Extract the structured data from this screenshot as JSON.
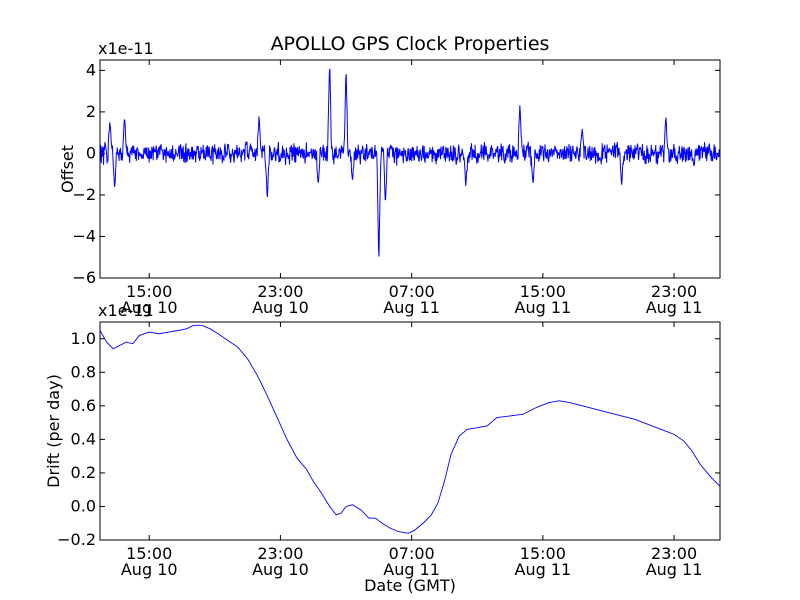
{
  "chart_data": [
    {
      "type": "line",
      "title": "APOLLO GPS Clock Properties",
      "xlabel": "",
      "ylabel": "Offset",
      "scale_label": "x1e-11",
      "x_unit": "hours since Aug 10 12:00 GMT",
      "xlim": [
        0,
        37.8
      ],
      "ylim": [
        -6,
        4.5
      ],
      "yticks": [
        -6,
        -4,
        -2,
        0,
        2,
        4
      ],
      "ytick_labels": [
        "−6",
        "−4",
        "−2",
        "0",
        "2",
        "4"
      ],
      "xticks": [
        3,
        11,
        19,
        27,
        35
      ],
      "xtick_labels": [
        {
          "time": "15:00",
          "date": "Aug 10"
        },
        {
          "time": "23:00",
          "date": "Aug 10"
        },
        {
          "time": "07:00",
          "date": "Aug 11"
        },
        {
          "time": "15:00",
          "date": "Aug 11"
        },
        {
          "time": "23:00",
          "date": "Aug 11"
        }
      ],
      "series": [
        {
          "name": "offset",
          "color": "#0000ff",
          "baseline": 0.0,
          "noise_amplitude": 0.6,
          "features": [
            {
              "x": 0.6,
              "y": 1.6
            },
            {
              "x": 0.9,
              "y": -1.7
            },
            {
              "x": 1.5,
              "y": 1.8
            },
            {
              "x": 9.7,
              "y": 1.9
            },
            {
              "x": 10.2,
              "y": -2.2
            },
            {
              "x": 13.3,
              "y": -1.6
            },
            {
              "x": 14.0,
              "y": 4.5
            },
            {
              "x": 15.0,
              "y": 4.2
            },
            {
              "x": 15.4,
              "y": -1.4
            },
            {
              "x": 17.0,
              "y": -5.4
            },
            {
              "x": 17.4,
              "y": -2.5
            },
            {
              "x": 22.3,
              "y": -1.6
            },
            {
              "x": 25.6,
              "y": 2.4
            },
            {
              "x": 26.4,
              "y": -1.5
            },
            {
              "x": 29.4,
              "y": 1.2
            },
            {
              "x": 31.8,
              "y": -1.6
            },
            {
              "x": 34.5,
              "y": 1.8
            },
            {
              "x": 36.2,
              "y": -0.6
            }
          ]
        }
      ]
    },
    {
      "type": "line",
      "title": "",
      "xlabel": "Date (GMT)",
      "ylabel": "Drift (per day)",
      "scale_label": "x1e-11",
      "x_unit": "hours since Aug 10 12:00 GMT",
      "xlim": [
        0,
        37.8
      ],
      "ylim": [
        -0.2,
        1.1
      ],
      "yticks": [
        -0.2,
        0.0,
        0.2,
        0.4,
        0.6,
        0.8,
        1.0
      ],
      "ytick_labels": [
        "−0.2",
        "0.0",
        "0.2",
        "0.4",
        "0.6",
        "0.8",
        "1.0"
      ],
      "xticks": [
        3,
        11,
        19,
        27,
        35
      ],
      "xtick_labels": [
        {
          "time": "15:00",
          "date": "Aug 10"
        },
        {
          "time": "23:00",
          "date": "Aug 10"
        },
        {
          "time": "07:00",
          "date": "Aug 11"
        },
        {
          "time": "15:00",
          "date": "Aug 11"
        },
        {
          "time": "23:00",
          "date": "Aug 11"
        }
      ],
      "series": [
        {
          "name": "drift",
          "color": "#0000ff",
          "points": [
            [
              0.0,
              1.05
            ],
            [
              0.4,
              0.98
            ],
            [
              0.8,
              0.94
            ],
            [
              1.2,
              0.96
            ],
            [
              1.6,
              0.98
            ],
            [
              2.0,
              0.97
            ],
            [
              2.4,
              1.02
            ],
            [
              3.0,
              1.04
            ],
            [
              3.6,
              1.03
            ],
            [
              4.2,
              1.04
            ],
            [
              4.8,
              1.05
            ],
            [
              5.3,
              1.06
            ],
            [
              5.7,
              1.08
            ],
            [
              6.2,
              1.08
            ],
            [
              6.7,
              1.06
            ],
            [
              7.2,
              1.03
            ],
            [
              7.8,
              0.99
            ],
            [
              8.4,
              0.95
            ],
            [
              9.0,
              0.88
            ],
            [
              9.6,
              0.78
            ],
            [
              10.2,
              0.66
            ],
            [
              10.8,
              0.53
            ],
            [
              11.4,
              0.4
            ],
            [
              12.0,
              0.29
            ],
            [
              12.6,
              0.22
            ],
            [
              13.0,
              0.15
            ],
            [
              13.5,
              0.08
            ],
            [
              14.0,
              0.0
            ],
            [
              14.4,
              -0.05
            ],
            [
              14.7,
              -0.04
            ],
            [
              15.0,
              0.0
            ],
            [
              15.4,
              0.01
            ],
            [
              15.9,
              -0.02
            ],
            [
              16.4,
              -0.07
            ],
            [
              16.8,
              -0.07
            ],
            [
              17.2,
              -0.1
            ],
            [
              17.7,
              -0.13
            ],
            [
              18.2,
              -0.15
            ],
            [
              18.8,
              -0.16
            ],
            [
              19.2,
              -0.14
            ],
            [
              19.7,
              -0.1
            ],
            [
              20.2,
              -0.05
            ],
            [
              20.6,
              0.02
            ],
            [
              21.0,
              0.15
            ],
            [
              21.4,
              0.31
            ],
            [
              21.9,
              0.42
            ],
            [
              22.4,
              0.46
            ],
            [
              23.0,
              0.47
            ],
            [
              23.6,
              0.48
            ],
            [
              24.2,
              0.53
            ],
            [
              25.0,
              0.54
            ],
            [
              25.8,
              0.55
            ],
            [
              26.6,
              0.59
            ],
            [
              27.4,
              0.62
            ],
            [
              28.0,
              0.63
            ],
            [
              28.6,
              0.62
            ],
            [
              29.4,
              0.6
            ],
            [
              30.2,
              0.58
            ],
            [
              31.0,
              0.56
            ],
            [
              31.8,
              0.54
            ],
            [
              32.6,
              0.52
            ],
            [
              33.4,
              0.49
            ],
            [
              34.2,
              0.46
            ],
            [
              35.0,
              0.43
            ],
            [
              35.6,
              0.39
            ],
            [
              36.1,
              0.33
            ],
            [
              36.6,
              0.25
            ],
            [
              37.2,
              0.18
            ],
            [
              37.8,
              0.12
            ]
          ]
        }
      ]
    }
  ]
}
